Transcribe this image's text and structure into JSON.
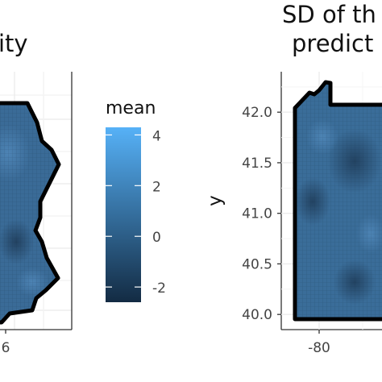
{
  "chart_data": [
    {
      "type": "heatmap",
      "title": "ity",
      "xlabel": "",
      "ylabel": "",
      "x_tick_labels": [
        "6"
      ],
      "grid": true
    },
    {
      "type": "heatmap",
      "title_lines": [
        "SD of th",
        "predict"
      ],
      "xlabel": "",
      "ylabel": "y",
      "ylim": [
        39.85,
        42.4
      ],
      "y_ticks": [
        40.0,
        40.5,
        41.0,
        41.5,
        42.0
      ],
      "y_tick_labels": [
        "40.0",
        "40.5",
        "41.0",
        "41.5",
        "42.0"
      ],
      "x_ticks": [
        -80
      ],
      "x_tick_labels": [
        "-80"
      ],
      "grid": true
    }
  ],
  "legend": {
    "title": "mean",
    "placement": "between-panels",
    "range": [
      -2.6,
      4.3
    ],
    "ticks": [
      4,
      2,
      0,
      -2
    ],
    "tick_labels": [
      "4",
      "2",
      "0",
      "-2"
    ],
    "colors": {
      "low": "#132b43",
      "high": "#56b1f7"
    }
  },
  "colors": {
    "fill": "#3a6d99",
    "border": "#000000",
    "grid": "#ebebeb",
    "panel_border": "#333333"
  }
}
